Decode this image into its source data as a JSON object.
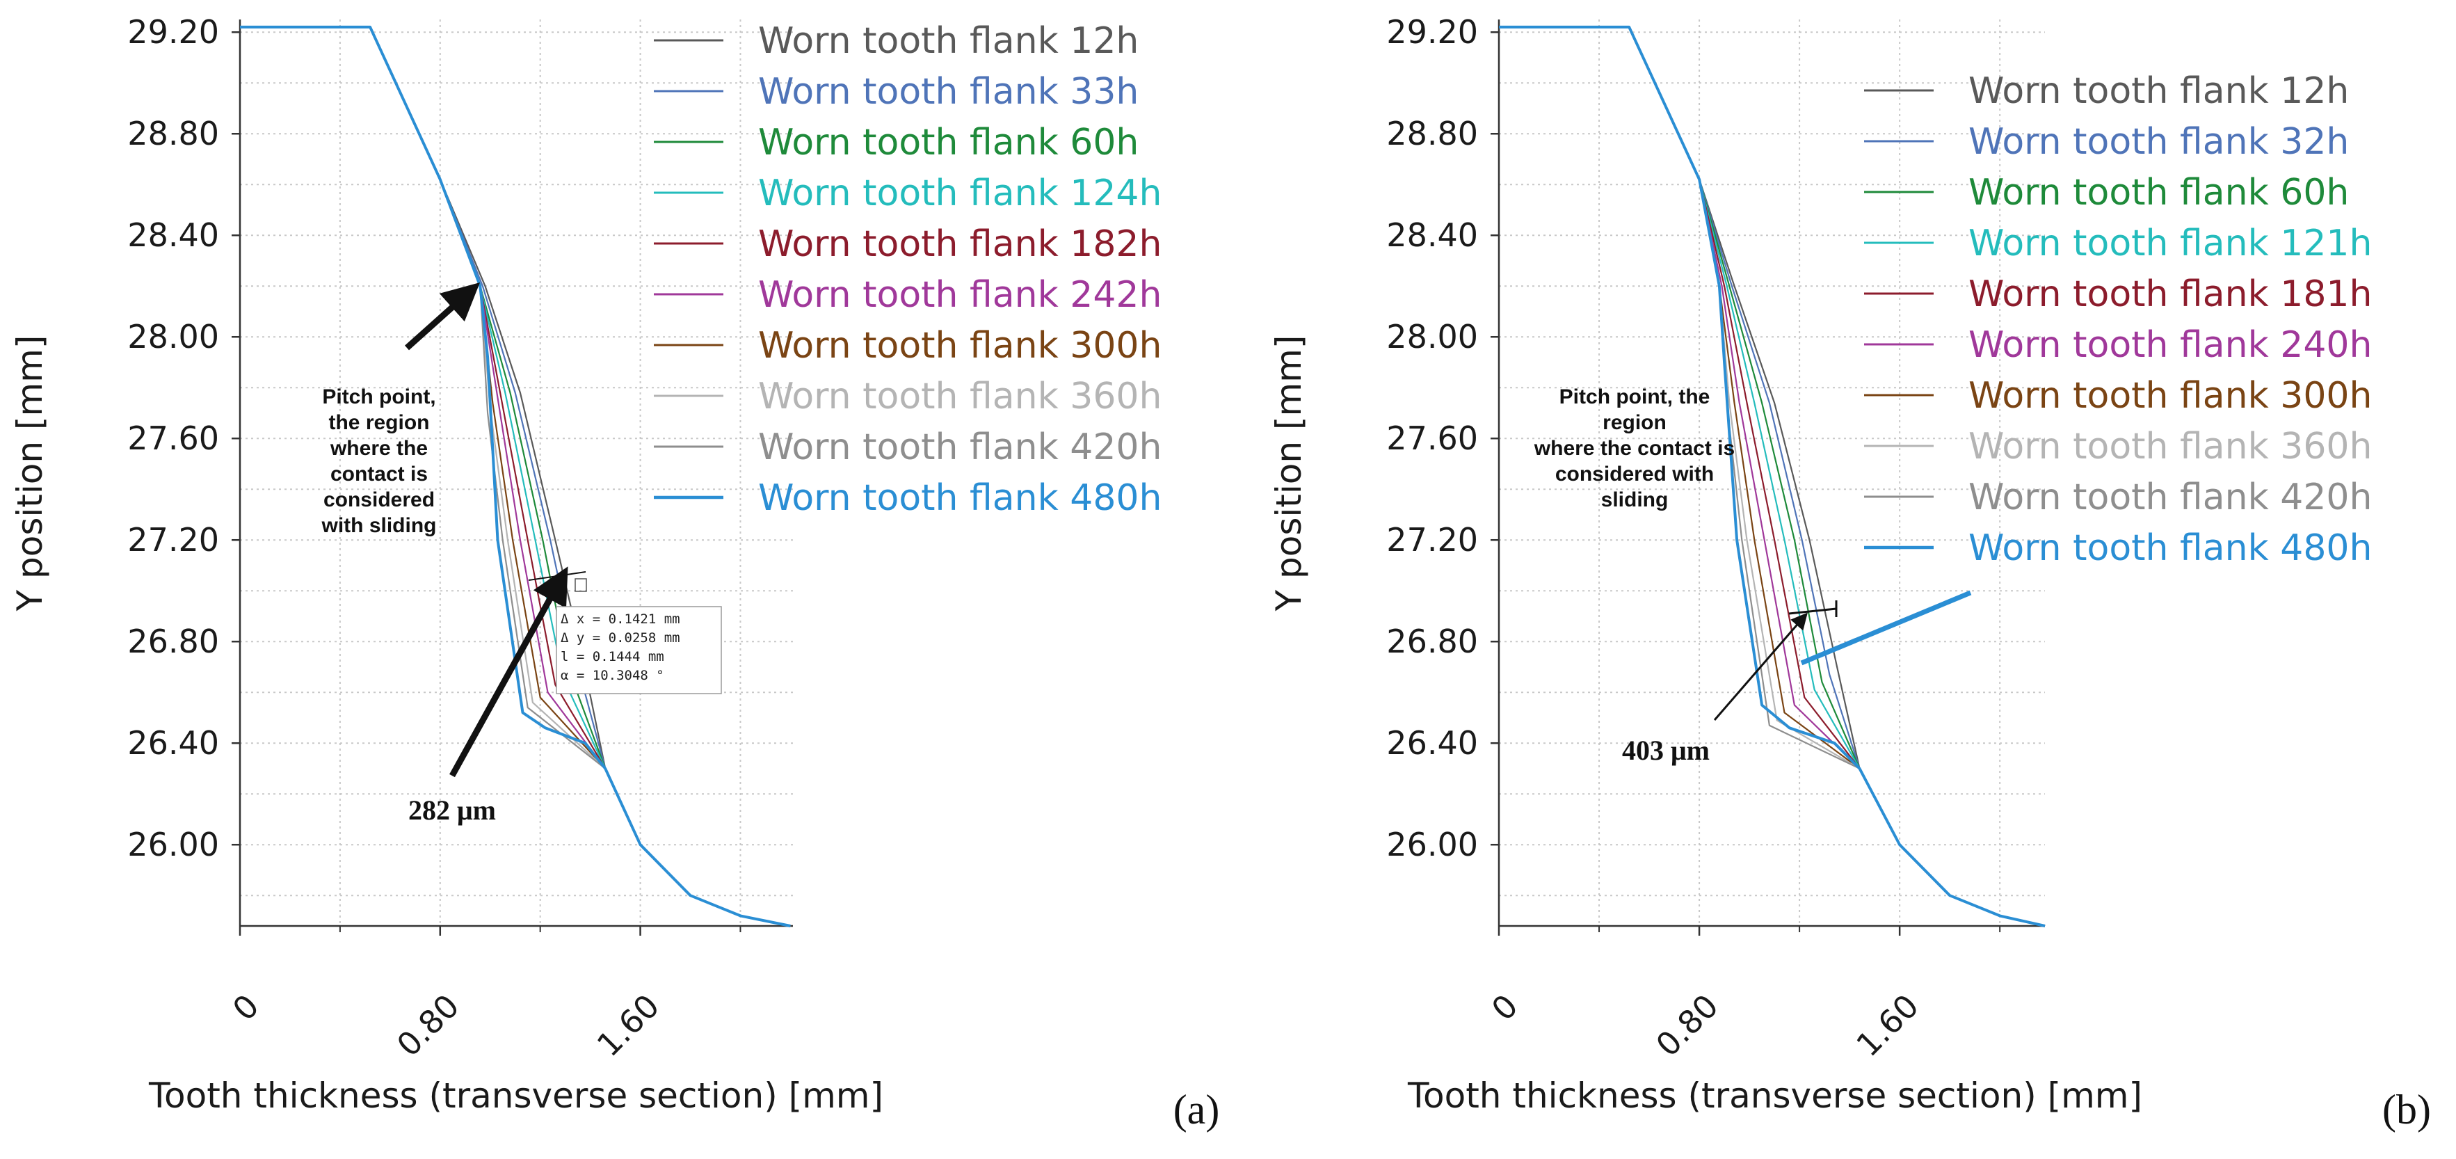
{
  "figure": {
    "colors": {
      "12h": "#595959",
      "33h": "#4f74b8",
      "60h": "#1e8a3a",
      "124h": "#24bcbc",
      "182h": "#8c1c2c",
      "242h": "#a0389a",
      "300h": "#7a4414",
      "360h": "#b4b4b4",
      "420h": "#8e8e8e",
      "480h": "#2a8ed4"
    }
  },
  "chart_data": [
    {
      "panel": "a",
      "type": "line",
      "panel_label": "(a)",
      "xlabel": "Tooth thickness (transverse section) [mm]",
      "ylabel": "Y position [mm]",
      "xlim": [
        0,
        2.21
      ],
      "ylim": [
        25.68,
        29.25
      ],
      "xticks": [
        0,
        0.8,
        1.6
      ],
      "xtick_labels": [
        "0",
        "0.80",
        "1.60"
      ],
      "yticks": [
        26.0,
        26.4,
        26.8,
        27.2,
        27.6,
        28.0,
        28.4,
        28.8,
        29.2
      ],
      "ytick_labels": [
        "26.00",
        "26.40",
        "26.80",
        "27.20",
        "27.60",
        "28.00",
        "28.40",
        "28.80",
        "29.20"
      ],
      "grid": true,
      "legend_position": "top-right",
      "series": [
        {
          "name": "Worn tooth flank 12h",
          "color_key": "12h",
          "x": [
            0,
            0.52,
            0.8,
            0.98,
            1.12,
            1.26,
            1.36,
            1.46,
            1.6,
            1.8,
            2.0,
            2.2
          ],
          "y": [
            29.22,
            29.22,
            28.62,
            28.2,
            27.78,
            27.2,
            26.78,
            26.3,
            26.0,
            25.8,
            25.72,
            25.68
          ]
        },
        {
          "name": "Worn tooth flank 33h",
          "color_key": "33h",
          "x": [
            0,
            0.52,
            0.8,
            0.97,
            1.1,
            1.24,
            1.34,
            1.46,
            1.6,
            1.8,
            2.0,
            2.2
          ],
          "y": [
            29.22,
            29.22,
            28.62,
            28.2,
            27.78,
            27.2,
            26.74,
            26.3,
            26.0,
            25.8,
            25.72,
            25.68
          ]
        },
        {
          "name": "Worn tooth flank 60h",
          "color_key": "60h",
          "x": [
            0,
            0.52,
            0.8,
            0.96,
            1.08,
            1.21,
            1.31,
            1.46,
            1.6,
            1.8,
            2.0,
            2.2
          ],
          "y": [
            29.22,
            29.22,
            28.62,
            28.2,
            27.78,
            27.2,
            26.7,
            26.3,
            26.0,
            25.8,
            25.72,
            25.68
          ]
        },
        {
          "name": "Worn tooth flank 124h",
          "color_key": "124h",
          "x": [
            0,
            0.52,
            0.8,
            0.96,
            1.06,
            1.18,
            1.29,
            1.46,
            1.6,
            1.8,
            2.0,
            2.2
          ],
          "y": [
            29.22,
            29.22,
            28.62,
            28.2,
            27.78,
            27.2,
            26.66,
            26.3,
            26.0,
            25.8,
            25.72,
            25.68
          ]
        },
        {
          "name": "Worn tooth flank 182h",
          "color_key": "182h",
          "x": [
            0,
            0.52,
            0.8,
            0.96,
            1.04,
            1.15,
            1.26,
            1.46,
            1.6,
            1.8,
            2.0,
            2.2
          ],
          "y": [
            29.22,
            29.22,
            28.62,
            28.2,
            27.78,
            27.2,
            26.63,
            26.3,
            26.0,
            25.8,
            25.72,
            25.68
          ]
        },
        {
          "name": "Worn tooth flank 242h",
          "color_key": "242h",
          "x": [
            0,
            0.52,
            0.8,
            0.96,
            1.03,
            1.12,
            1.23,
            1.46,
            1.6,
            1.8,
            2.0,
            2.2
          ],
          "y": [
            29.22,
            29.22,
            28.62,
            28.2,
            27.76,
            27.2,
            26.6,
            26.3,
            26.0,
            25.8,
            25.72,
            25.68
          ]
        },
        {
          "name": "Worn tooth flank 300h",
          "color_key": "300h",
          "x": [
            0,
            0.52,
            0.8,
            0.96,
            1.01,
            1.09,
            1.2,
            1.46,
            1.6,
            1.8,
            2.0,
            2.2
          ],
          "y": [
            29.22,
            29.22,
            28.62,
            28.2,
            27.74,
            27.2,
            26.58,
            26.3,
            26.0,
            25.8,
            25.72,
            25.68
          ]
        },
        {
          "name": "Worn tooth flank 360h",
          "color_key": "360h",
          "x": [
            0,
            0.52,
            0.8,
            0.96,
            1.0,
            1.07,
            1.17,
            1.46,
            1.6,
            1.8,
            2.0,
            2.2
          ],
          "y": [
            29.22,
            29.22,
            28.62,
            28.2,
            27.72,
            27.2,
            26.56,
            26.3,
            26.0,
            25.8,
            25.72,
            25.68
          ]
        },
        {
          "name": "Worn tooth flank 420h",
          "color_key": "420h",
          "x": [
            0,
            0.52,
            0.8,
            0.96,
            0.99,
            1.05,
            1.15,
            1.46,
            1.6,
            1.8,
            2.0,
            2.2
          ],
          "y": [
            29.22,
            29.22,
            28.62,
            28.2,
            27.7,
            27.2,
            26.54,
            26.3,
            26.0,
            25.8,
            25.72,
            25.68
          ]
        },
        {
          "name": "Worn tooth flank 480h",
          "color_key": "480h",
          "x": [
            0,
            0.52,
            0.8,
            0.96,
            0.99,
            1.03,
            1.13,
            1.22,
            1.38,
            1.46,
            1.6,
            1.8,
            2.0,
            2.2
          ],
          "y": [
            29.22,
            29.22,
            28.62,
            28.2,
            27.92,
            27.2,
            26.52,
            26.46,
            26.4,
            26.3,
            26.0,
            25.8,
            25.72,
            25.68
          ]
        }
      ],
      "annotations": {
        "pitch_text": [
          "Pitch point,",
          "the region",
          "where the",
          "contact is",
          "considered",
          "with sliding"
        ],
        "measure_text": "282 μm",
        "measurement_box": [
          "Δ x = 0.1421 mm",
          "Δ y = 0.0258 mm",
          "l = 0.1444 mm",
          "α = 10.3048 °"
        ]
      }
    },
    {
      "panel": "b",
      "type": "line",
      "panel_label": "(b)",
      "xlabel": "Tooth thickness (transverse section) [mm]",
      "ylabel": "Y position [mm]",
      "xlim": [
        0,
        2.18
      ],
      "ylim": [
        25.68,
        29.25
      ],
      "xticks": [
        0,
        0.8,
        1.6
      ],
      "xtick_labels": [
        "0",
        "0.80",
        "1.60"
      ],
      "yticks": [
        26.0,
        26.4,
        26.8,
        27.2,
        27.6,
        28.0,
        28.4,
        28.8,
        29.2
      ],
      "ytick_labels": [
        "26.00",
        "26.40",
        "26.80",
        "27.20",
        "27.60",
        "28.00",
        "28.40",
        "28.80",
        "29.20"
      ],
      "grid": true,
      "legend_position": "top-right",
      "series": [
        {
          "name": "Worn tooth flank 12h",
          "color_key": "12h",
          "x": [
            0,
            0.52,
            0.8,
            0.94,
            1.1,
            1.24,
            1.35,
            1.44,
            1.6,
            1.8,
            2.0,
            2.18
          ],
          "y": [
            29.22,
            29.22,
            28.62,
            28.2,
            27.74,
            27.2,
            26.7,
            26.3,
            26.0,
            25.8,
            25.72,
            25.68
          ]
        },
        {
          "name": "Worn tooth flank 32h",
          "color_key": "33h",
          "x": [
            0,
            0.52,
            0.8,
            0.93,
            1.08,
            1.21,
            1.32,
            1.44,
            1.6,
            1.8,
            2.0,
            2.18
          ],
          "y": [
            29.22,
            29.22,
            28.62,
            28.2,
            27.74,
            27.2,
            26.67,
            26.3,
            26.0,
            25.8,
            25.72,
            25.68
          ]
        },
        {
          "name": "Worn tooth flank 60h",
          "color_key": "60h",
          "x": [
            0,
            0.52,
            0.8,
            0.92,
            1.05,
            1.18,
            1.29,
            1.44,
            1.6,
            1.8,
            2.0,
            2.18
          ],
          "y": [
            29.22,
            29.22,
            28.62,
            28.2,
            27.74,
            27.2,
            26.64,
            26.3,
            26.0,
            25.8,
            25.72,
            25.68
          ]
        },
        {
          "name": "Worn tooth flank 121h",
          "color_key": "124h",
          "x": [
            0,
            0.52,
            0.8,
            0.91,
            1.02,
            1.14,
            1.26,
            1.44,
            1.6,
            1.8,
            2.0,
            2.18
          ],
          "y": [
            29.22,
            29.22,
            28.62,
            28.2,
            27.74,
            27.2,
            26.61,
            26.3,
            26.0,
            25.8,
            25.72,
            25.68
          ]
        },
        {
          "name": "Worn tooth flank 181h",
          "color_key": "182h",
          "x": [
            0,
            0.52,
            0.8,
            0.9,
            0.99,
            1.1,
            1.22,
            1.44,
            1.6,
            1.8,
            2.0,
            2.18
          ],
          "y": [
            29.22,
            29.22,
            28.62,
            28.2,
            27.74,
            27.2,
            26.58,
            26.3,
            26.0,
            25.8,
            25.72,
            25.68
          ]
        },
        {
          "name": "Worn tooth flank 240h",
          "color_key": "242h",
          "x": [
            0,
            0.52,
            0.8,
            0.89,
            0.96,
            1.06,
            1.18,
            1.44,
            1.6,
            1.8,
            2.0,
            2.18
          ],
          "y": [
            29.22,
            29.22,
            28.62,
            28.2,
            27.74,
            27.2,
            26.55,
            26.3,
            26.0,
            25.8,
            25.72,
            25.68
          ]
        },
        {
          "name": "Worn tooth flank 300h",
          "color_key": "300h",
          "x": [
            0,
            0.52,
            0.8,
            0.88,
            0.94,
            1.02,
            1.14,
            1.44,
            1.6,
            1.8,
            2.0,
            2.18
          ],
          "y": [
            29.22,
            29.22,
            28.62,
            28.2,
            27.74,
            27.2,
            26.52,
            26.3,
            26.0,
            25.8,
            25.72,
            25.68
          ]
        },
        {
          "name": "Worn tooth flank 360h",
          "color_key": "360h",
          "x": [
            0,
            0.52,
            0.8,
            0.88,
            0.92,
            0.99,
            1.11,
            1.44,
            1.6,
            1.8,
            2.0,
            2.18
          ],
          "y": [
            29.22,
            29.22,
            28.62,
            28.2,
            27.74,
            27.2,
            26.49,
            26.3,
            26.0,
            25.8,
            25.72,
            25.68
          ]
        },
        {
          "name": "Worn tooth flank 420h",
          "color_key": "420h",
          "x": [
            0,
            0.52,
            0.8,
            0.88,
            0.91,
            0.97,
            1.08,
            1.44,
            1.6,
            1.8,
            2.0,
            2.18
          ],
          "y": [
            29.22,
            29.22,
            28.62,
            28.2,
            27.74,
            27.2,
            26.47,
            26.3,
            26.0,
            25.8,
            25.72,
            25.68
          ]
        },
        {
          "name": "Worn tooth flank 480h",
          "color_key": "480h",
          "x": [
            0,
            0.52,
            0.8,
            0.88,
            0.9,
            0.95,
            1.05,
            1.16,
            1.34,
            1.44,
            1.6,
            1.8,
            2.0,
            2.18
          ],
          "y": [
            29.22,
            29.22,
            28.62,
            28.2,
            27.9,
            27.2,
            26.55,
            26.46,
            26.4,
            26.3,
            26.0,
            25.8,
            25.72,
            25.68
          ]
        }
      ],
      "annotations": {
        "pitch_text": [
          "Pitch point, the",
          "region",
          "where the contact is",
          "considered with",
          "sliding"
        ],
        "measure_text": "403 μm"
      }
    }
  ]
}
